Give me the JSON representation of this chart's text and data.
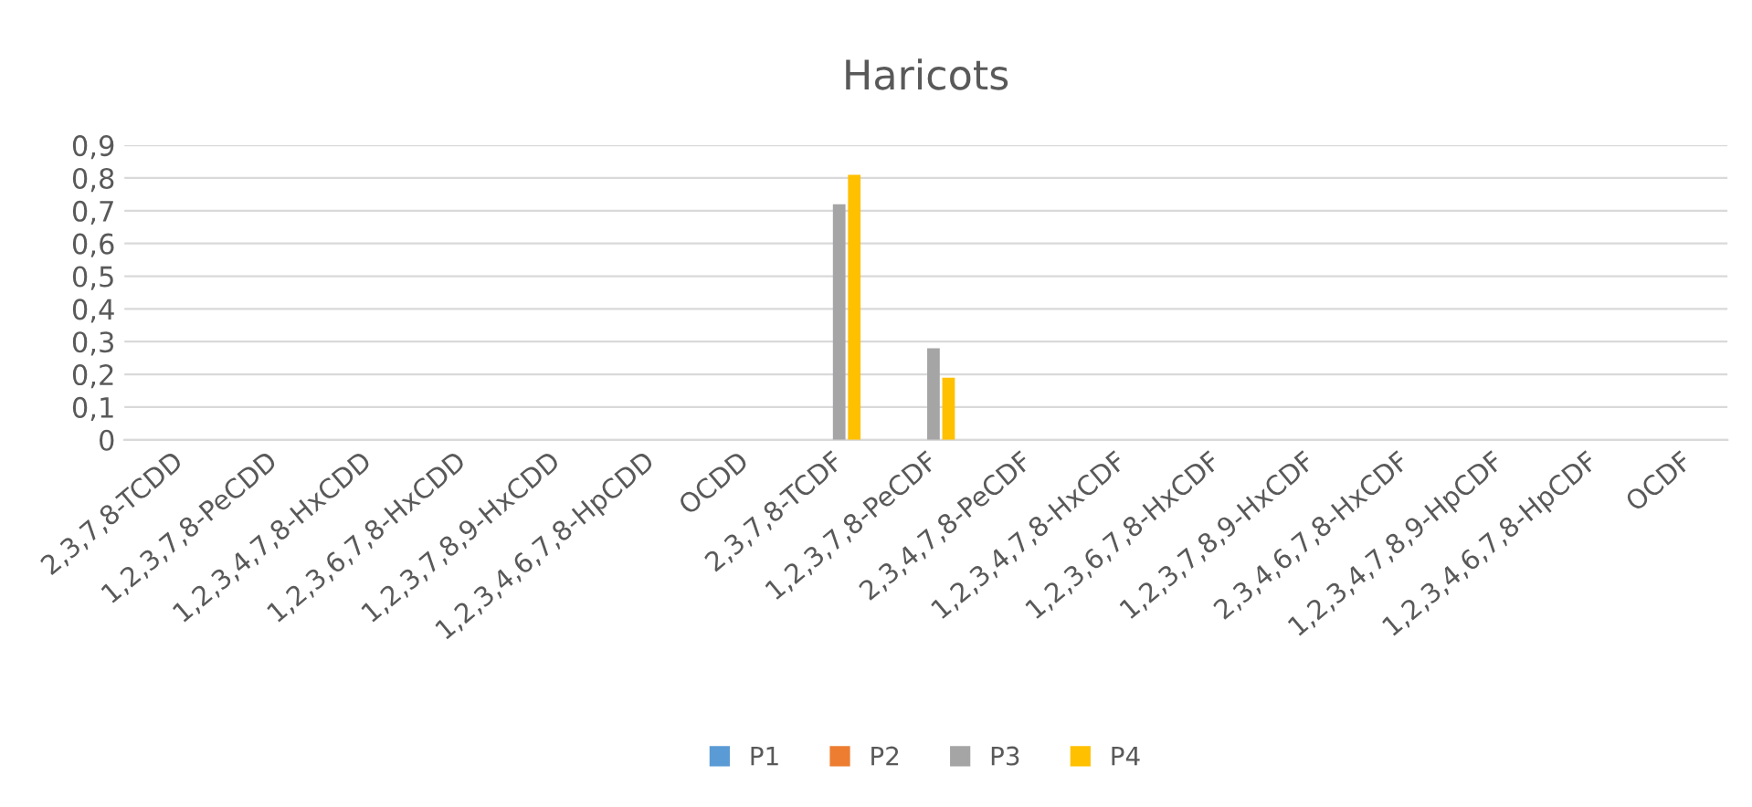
{
  "chart_data": {
    "type": "bar",
    "title": "Haricots",
    "categories": [
      "2,3,7,8-TCDD",
      "1,2,3,7,8-PeCDD",
      "1,2,3,4,7,8-HxCDD",
      "1,2,3,6,7,8-HxCDD",
      "1,2,3,7,8,9-HxCDD",
      "1,2,3,4,6,7,8-HpCDD",
      "OCDD",
      "2,3,7,8-TCDF",
      "1,2,3,7,8-PeCDF",
      "2,3,4,7,8-PeCDF",
      "1,2,3,4,7,8-HxCDF",
      "1,2,3,6,7,8-HxCDF",
      "1,2,3,7,8,9-HxCDF",
      "2,3,4,6,7,8-HxCDF",
      "1,2,3,4,7,8,9-HpCDF",
      "1,2,3,4,6,7,8-HpCDF",
      "OCDF"
    ],
    "series": [
      {
        "name": "P1",
        "color": "#5b9bd5",
        "values": [
          0,
          0,
          0,
          0,
          0,
          0,
          0,
          0,
          0,
          0,
          0,
          0,
          0,
          0,
          0,
          0,
          0
        ]
      },
      {
        "name": "P2",
        "color": "#ed7d31",
        "values": [
          0,
          0,
          0,
          0,
          0,
          0,
          0,
          0,
          0,
          0,
          0,
          0,
          0,
          0,
          0,
          0,
          0
        ]
      },
      {
        "name": "P3",
        "color": "#a5a5a5",
        "values": [
          0,
          0,
          0,
          0,
          0,
          0,
          0,
          0.72,
          0.28,
          0,
          0,
          0,
          0,
          0,
          0,
          0,
          0
        ]
      },
      {
        "name": "P4",
        "color": "#ffc000",
        "values": [
          0,
          0,
          0,
          0,
          0,
          0,
          0,
          0.81,
          0.19,
          0,
          0,
          0,
          0,
          0,
          0,
          0,
          0
        ]
      }
    ],
    "ylim": [
      0,
      0.9
    ],
    "yticks": [
      0,
      {
        "value": 0.1,
        "label": "0,1"
      },
      {
        "value": 0.2,
        "label": "0,2"
      },
      {
        "value": 0.3,
        "label": "0,3"
      },
      {
        "value": 0.4,
        "label": "0,4"
      },
      {
        "value": 0.5,
        "label": "0,5"
      },
      {
        "value": 0.6,
        "label": "0,6"
      },
      {
        "value": 0.7,
        "label": "0,7"
      },
      {
        "value": 0.8,
        "label": "0,8"
      },
      {
        "value": 0.9,
        "label": "0,9"
      }
    ],
    "grid": "y",
    "legend": "bottom"
  }
}
